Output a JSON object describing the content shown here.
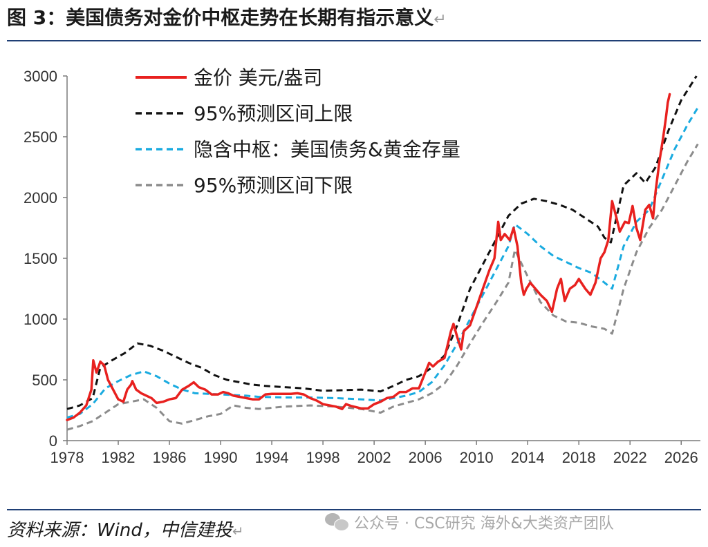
{
  "header": {
    "title": "图 3：美国债务对金价中枢走势在长期有指示意义",
    "return_mark": "↵"
  },
  "footer": {
    "source": "资料来源：Wind，中信建投",
    "return_mark": "↵",
    "watermark": "公众号 · CSC研究 海外&大类资产团队"
  },
  "colors": {
    "gold_price": "#e8211f",
    "upper_band": "#111111",
    "implied_center": "#1aabe0",
    "lower_band": "#8c8c8c",
    "rule": "#1f3f75"
  },
  "chart_data": {
    "type": "line",
    "xlim": [
      1978,
      2027.5
    ],
    "ylim": [
      0,
      3000
    ],
    "x_ticks": [
      1978,
      1982,
      1986,
      1990,
      1994,
      1998,
      2002,
      2006,
      2010,
      2014,
      2018,
      2022,
      2026
    ],
    "y_ticks": [
      0,
      500,
      1000,
      1500,
      2000,
      2500,
      3000
    ],
    "grid": false,
    "legend_position": "top-left",
    "series": [
      {
        "name": "金价 美元/盎司",
        "style": "solid",
        "color": "#e8211f",
        "points": [
          [
            1978,
            170
          ],
          [
            1978.5,
            190
          ],
          [
            1979,
            230
          ],
          [
            1979.5,
            290
          ],
          [
            1979.9,
            420
          ],
          [
            1980.05,
            660
          ],
          [
            1980.3,
            560
          ],
          [
            1980.6,
            650
          ],
          [
            1980.9,
            620
          ],
          [
            1981.2,
            500
          ],
          [
            1981.6,
            420
          ],
          [
            1982.0,
            340
          ],
          [
            1982.4,
            320
          ],
          [
            1982.7,
            420
          ],
          [
            1983.0,
            460
          ],
          [
            1983.1,
            490
          ],
          [
            1983.4,
            420
          ],
          [
            1983.8,
            390
          ],
          [
            1984.2,
            370
          ],
          [
            1984.6,
            350
          ],
          [
            1985.0,
            310
          ],
          [
            1985.5,
            320
          ],
          [
            1986.0,
            340
          ],
          [
            1986.5,
            350
          ],
          [
            1987.0,
            420
          ],
          [
            1987.5,
            450
          ],
          [
            1987.9,
            480
          ],
          [
            1988.3,
            440
          ],
          [
            1988.8,
            420
          ],
          [
            1989.3,
            380
          ],
          [
            1989.8,
            380
          ],
          [
            1990.2,
            400
          ],
          [
            1990.6,
            390
          ],
          [
            1991.0,
            370
          ],
          [
            1991.5,
            360
          ],
          [
            1992.0,
            350
          ],
          [
            1992.5,
            340
          ],
          [
            1993.0,
            340
          ],
          [
            1993.5,
            380
          ],
          [
            1994.0,
            385
          ],
          [
            1994.5,
            385
          ],
          [
            1995.0,
            385
          ],
          [
            1995.5,
            385
          ],
          [
            1996.0,
            390
          ],
          [
            1996.5,
            380
          ],
          [
            1997.0,
            350
          ],
          [
            1997.5,
            330
          ],
          [
            1998.0,
            300
          ],
          [
            1998.5,
            290
          ],
          [
            1999.0,
            280
          ],
          [
            1999.5,
            260
          ],
          [
            1999.8,
            300
          ],
          [
            2000.2,
            285
          ],
          [
            2000.6,
            275
          ],
          [
            2001.0,
            265
          ],
          [
            2001.5,
            265
          ],
          [
            2002.0,
            300
          ],
          [
            2002.5,
            320
          ],
          [
            2003.0,
            350
          ],
          [
            2003.5,
            360
          ],
          [
            2004.0,
            400
          ],
          [
            2004.5,
            400
          ],
          [
            2005.0,
            430
          ],
          [
            2005.5,
            430
          ],
          [
            2006.0,
            560
          ],
          [
            2006.3,
            640
          ],
          [
            2006.6,
            610
          ],
          [
            2007.0,
            650
          ],
          [
            2007.5,
            680
          ],
          [
            2008.0,
            900
          ],
          [
            2008.2,
            960
          ],
          [
            2008.5,
            850
          ],
          [
            2008.8,
            750
          ],
          [
            2009.0,
            900
          ],
          [
            2009.5,
            950
          ],
          [
            2010.0,
            1100
          ],
          [
            2010.5,
            1250
          ],
          [
            2011.0,
            1400
          ],
          [
            2011.4,
            1500
          ],
          [
            2011.7,
            1800
          ],
          [
            2011.9,
            1650
          ],
          [
            2012.2,
            1700
          ],
          [
            2012.6,
            1650
          ],
          [
            2012.9,
            1750
          ],
          [
            2013.2,
            1600
          ],
          [
            2013.5,
            1300
          ],
          [
            2013.7,
            1200
          ],
          [
            2013.9,
            1250
          ],
          [
            2014.2,
            1300
          ],
          [
            2014.6,
            1250
          ],
          [
            2015.0,
            1200
          ],
          [
            2015.5,
            1150
          ],
          [
            2015.9,
            1060
          ],
          [
            2016.3,
            1250
          ],
          [
            2016.6,
            1330
          ],
          [
            2016.9,
            1150
          ],
          [
            2017.3,
            1250
          ],
          [
            2017.7,
            1280
          ],
          [
            2018.0,
            1330
          ],
          [
            2018.5,
            1250
          ],
          [
            2018.9,
            1200
          ],
          [
            2019.3,
            1300
          ],
          [
            2019.7,
            1500
          ],
          [
            2020.0,
            1550
          ],
          [
            2020.3,
            1650
          ],
          [
            2020.6,
            1970
          ],
          [
            2020.9,
            1850
          ],
          [
            2021.2,
            1720
          ],
          [
            2021.6,
            1800
          ],
          [
            2021.9,
            1790
          ],
          [
            2022.2,
            1930
          ],
          [
            2022.5,
            1750
          ],
          [
            2022.8,
            1650
          ],
          [
            2023.2,
            1900
          ],
          [
            2023.5,
            1940
          ],
          [
            2023.8,
            1830
          ],
          [
            2024.0,
            2050
          ],
          [
            2024.3,
            2300
          ],
          [
            2024.6,
            2500
          ],
          [
            2024.8,
            2650
          ],
          [
            2024.95,
            2780
          ],
          [
            2025.1,
            2850
          ]
        ]
      },
      {
        "name": "95%预测区间上限",
        "style": "dashed",
        "color": "#111111",
        "points": [
          [
            1978,
            260
          ],
          [
            1979,
            290
          ],
          [
            1980,
            350
          ],
          [
            1980.6,
            600
          ],
          [
            1981.5,
            660
          ],
          [
            1982.5,
            720
          ],
          [
            1983.5,
            800
          ],
          [
            1984.5,
            780
          ],
          [
            1985.5,
            740
          ],
          [
            1986.5,
            690
          ],
          [
            1987.5,
            640
          ],
          [
            1988.5,
            600
          ],
          [
            1989.5,
            540
          ],
          [
            1990.5,
            500
          ],
          [
            1991.5,
            480
          ],
          [
            1992.5,
            460
          ],
          [
            1993.5,
            450
          ],
          [
            1995.0,
            440
          ],
          [
            1996.5,
            430
          ],
          [
            1998.0,
            410
          ],
          [
            1999.5,
            415
          ],
          [
            2001.0,
            420
          ],
          [
            2002.5,
            405
          ],
          [
            2003.5,
            450
          ],
          [
            2004.5,
            500
          ],
          [
            2005.5,
            530
          ],
          [
            2006.5,
            600
          ],
          [
            2007.5,
            700
          ],
          [
            2008.5,
            950
          ],
          [
            2009.5,
            1250
          ],
          [
            2010.5,
            1450
          ],
          [
            2011.5,
            1650
          ],
          [
            2012.5,
            1850
          ],
          [
            2013.5,
            1950
          ],
          [
            2014.5,
            1990
          ],
          [
            2015.5,
            1970
          ],
          [
            2016.5,
            1940
          ],
          [
            2017.5,
            1900
          ],
          [
            2018.5,
            1830
          ],
          [
            2019.5,
            1760
          ],
          [
            2020.0,
            1670
          ],
          [
            2020.5,
            1630
          ],
          [
            2021.5,
            2100
          ],
          [
            2022.5,
            2200
          ],
          [
            2023.2,
            2120
          ],
          [
            2024.0,
            2250
          ],
          [
            2025.0,
            2550
          ],
          [
            2026.0,
            2800
          ],
          [
            2027.2,
            3000
          ]
        ]
      },
      {
        "name": "隐含中枢：美国债务&黄金存量",
        "style": "dashed",
        "color": "#1aabe0",
        "points": [
          [
            1978,
            190
          ],
          [
            1979,
            220
          ],
          [
            1980,
            300
          ],
          [
            1981,
            430
          ],
          [
            1982,
            490
          ],
          [
            1983,
            540
          ],
          [
            1984,
            570
          ],
          [
            1985,
            530
          ],
          [
            1986,
            470
          ],
          [
            1987,
            420
          ],
          [
            1988,
            390
          ],
          [
            1989,
            385
          ],
          [
            1990,
            380
          ],
          [
            1991,
            375
          ],
          [
            1992,
            370
          ],
          [
            1993,
            360
          ],
          [
            1995,
            355
          ],
          [
            1997,
            355
          ],
          [
            1999,
            350
          ],
          [
            2001,
            340
          ],
          [
            2002.5,
            330
          ],
          [
            2003.5,
            350
          ],
          [
            2004.5,
            370
          ],
          [
            2005.5,
            400
          ],
          [
            2006.5,
            480
          ],
          [
            2007.5,
            620
          ],
          [
            2008.5,
            800
          ],
          [
            2009.5,
            1000
          ],
          [
            2010.5,
            1200
          ],
          [
            2011.5,
            1400
          ],
          [
            2012.5,
            1600
          ],
          [
            2013.0,
            1780
          ],
          [
            2014.0,
            1700
          ],
          [
            2015.0,
            1600
          ],
          [
            2016.0,
            1520
          ],
          [
            2017.0,
            1470
          ],
          [
            2018.0,
            1420
          ],
          [
            2019.0,
            1380
          ],
          [
            2020.0,
            1300
          ],
          [
            2020.6,
            1250
          ],
          [
            2021.5,
            1600
          ],
          [
            2022.5,
            1800
          ],
          [
            2023.5,
            1900
          ],
          [
            2024.5,
            2150
          ],
          [
            2025.5,
            2400
          ],
          [
            2026.5,
            2600
          ],
          [
            2027.3,
            2740
          ]
        ]
      },
      {
        "name": "95%预测区间下限",
        "style": "dashed",
        "color": "#8c8c8c",
        "points": [
          [
            1978,
            90
          ],
          [
            1979,
            120
          ],
          [
            1980,
            160
          ],
          [
            1981,
            230
          ],
          [
            1982,
            300
          ],
          [
            1983,
            320
          ],
          [
            1984,
            340
          ],
          [
            1985,
            270
          ],
          [
            1986,
            160
          ],
          [
            1987,
            140
          ],
          [
            1988,
            170
          ],
          [
            1989,
            200
          ],
          [
            1990,
            220
          ],
          [
            1991,
            290
          ],
          [
            1992,
            270
          ],
          [
            1993,
            260
          ],
          [
            1995,
            280
          ],
          [
            1997,
            290
          ],
          [
            1999,
            280
          ],
          [
            2001,
            260
          ],
          [
            2002.5,
            230
          ],
          [
            2003.5,
            280
          ],
          [
            2004.5,
            310
          ],
          [
            2005.5,
            340
          ],
          [
            2006.5,
            390
          ],
          [
            2007.5,
            470
          ],
          [
            2008.5,
            620
          ],
          [
            2009.5,
            800
          ],
          [
            2010.5,
            970
          ],
          [
            2011.5,
            1130
          ],
          [
            2012.5,
            1300
          ],
          [
            2013.0,
            1570
          ],
          [
            2014.0,
            1350
          ],
          [
            2015.0,
            1140
          ],
          [
            2016.0,
            1030
          ],
          [
            2017.0,
            980
          ],
          [
            2018.0,
            970
          ],
          [
            2019.0,
            940
          ],
          [
            2020.0,
            920
          ],
          [
            2020.6,
            880
          ],
          [
            2021.5,
            1250
          ],
          [
            2022.5,
            1550
          ],
          [
            2023.5,
            1750
          ],
          [
            2024.5,
            1900
          ],
          [
            2025.5,
            2100
          ],
          [
            2026.5,
            2300
          ],
          [
            2027.3,
            2440
          ]
        ]
      }
    ]
  }
}
